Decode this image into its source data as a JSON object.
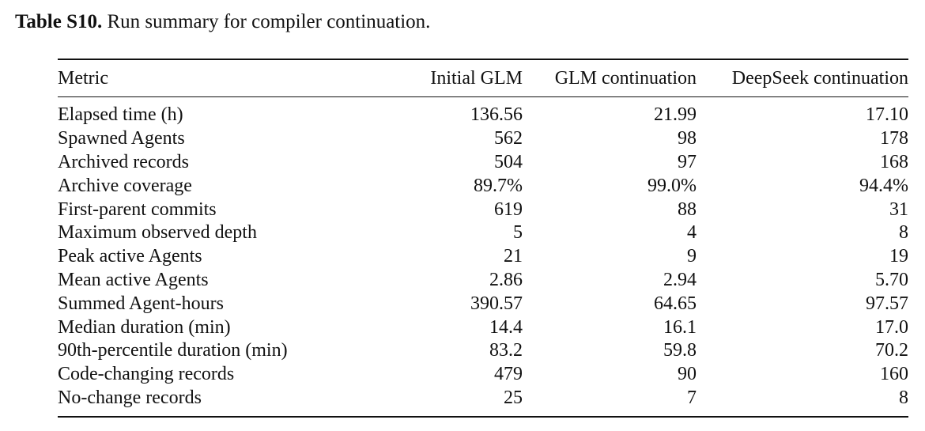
{
  "caption": {
    "label": "Table S10.",
    "text": "Run summary for compiler continuation."
  },
  "table": {
    "headers": [
      "Metric",
      "Initial GLM",
      "GLM continuation",
      "DeepSeek continuation"
    ],
    "rows": [
      [
        "Elapsed time (h)",
        "136.56",
        "21.99",
        "17.10"
      ],
      [
        "Spawned Agents",
        "562",
        "98",
        "178"
      ],
      [
        "Archived records",
        "504",
        "97",
        "168"
      ],
      [
        "Archive coverage",
        "89.7%",
        "99.0%",
        "94.4%"
      ],
      [
        "First-parent commits",
        "619",
        "88",
        "31"
      ],
      [
        "Maximum observed depth",
        "5",
        "4",
        "8"
      ],
      [
        "Peak active Agents",
        "21",
        "9",
        "19"
      ],
      [
        "Mean active Agents",
        "2.86",
        "2.94",
        "5.70"
      ],
      [
        "Summed Agent-hours",
        "390.57",
        "64.65",
        "97.57"
      ],
      [
        "Median duration (min)",
        "14.4",
        "16.1",
        "17.0"
      ],
      [
        "90th-percentile duration (min)",
        "83.2",
        "59.8",
        "70.2"
      ],
      [
        "Code-changing records",
        "479",
        "90",
        "160"
      ],
      [
        "No-change records",
        "25",
        "7",
        "8"
      ]
    ]
  }
}
